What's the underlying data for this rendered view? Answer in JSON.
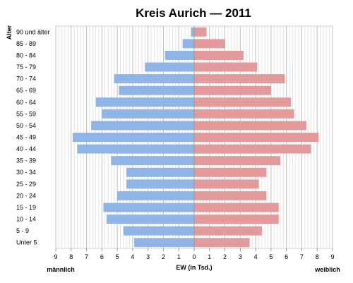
{
  "chart_data": {
    "type": "bar",
    "orientation": "horizontal-population-pyramid",
    "title": "Kreis Aurich — 2011",
    "xlabel": "EW (in Tsd.)",
    "ylabel": "Alter",
    "left_label": "männlich",
    "right_label": "weiblich",
    "xlim": [
      -9,
      9
    ],
    "x_ticks": [
      9,
      8,
      7,
      6,
      5,
      4,
      3,
      2,
      1,
      0,
      1,
      2,
      3,
      4,
      5,
      6,
      7,
      8,
      9
    ],
    "grid": "vertical",
    "categories": [
      "90 und älter",
      "85 - 89",
      "80 - 84",
      "75 - 79",
      "70 - 74",
      "65 - 69",
      "60 - 64",
      "55 - 59",
      "50 - 54",
      "45 - 49",
      "40 - 44",
      "35 - 39",
      "30 - 34",
      "25 - 29",
      "20 - 24",
      "15 - 19",
      "10 - 14",
      "5 - 9",
      "Unter 5"
    ],
    "series": [
      {
        "name": "männlich",
        "color": "#8fb4e6",
        "values": [
          0.2,
          0.75,
          1.9,
          3.2,
          5.2,
          4.9,
          6.4,
          6.0,
          6.7,
          7.9,
          7.6,
          5.4,
          4.4,
          4.4,
          5.0,
          5.9,
          5.7,
          4.6,
          3.9
        ]
      },
      {
        "name": "weiblich",
        "color": "#e39a9a",
        "values": [
          0.8,
          2.0,
          3.2,
          4.1,
          5.9,
          5.0,
          6.3,
          6.5,
          7.3,
          8.1,
          7.6,
          5.6,
          4.7,
          4.2,
          4.7,
          5.5,
          5.5,
          4.4,
          3.6
        ]
      }
    ]
  }
}
